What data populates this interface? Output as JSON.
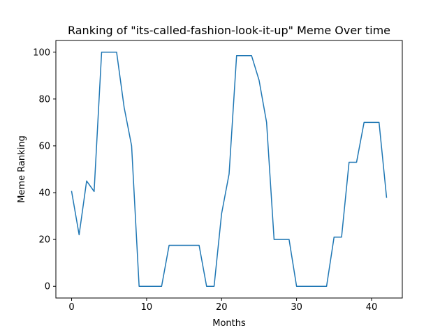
{
  "chart_data": {
    "type": "line",
    "title": "Ranking of \"its-called-fashion-look-it-up\" Meme Over time",
    "xlabel": "Months",
    "ylabel": "Meme Ranking",
    "xlim": [
      -2.1,
      44.1
    ],
    "ylim": [
      -5,
      105
    ],
    "xticks": [
      0,
      10,
      20,
      30,
      40
    ],
    "yticks": [
      0,
      20,
      40,
      60,
      80,
      100
    ],
    "grid": false,
    "line_color": "#1f77b4",
    "series": [
      {
        "x": [
          0,
          1,
          2,
          3,
          4,
          5,
          6,
          7,
          8,
          9,
          10,
          11,
          12,
          13,
          14,
          15,
          16,
          17,
          18,
          19,
          20,
          21,
          22,
          23,
          24,
          25,
          26,
          27,
          28,
          29,
          30,
          31,
          32,
          33,
          34,
          35,
          36,
          37,
          38,
          39,
          40,
          41,
          42
        ],
        "values": [
          40.5,
          22,
          45,
          40.5,
          100,
          100,
          100,
          76.5,
          60,
          0,
          0,
          0,
          0,
          17.5,
          17.5,
          17.5,
          17.5,
          17.5,
          0,
          0,
          31,
          48,
          98.5,
          98.5,
          98.5,
          88,
          70,
          20,
          20,
          20,
          0,
          0,
          0,
          0,
          0,
          21,
          21,
          53,
          53,
          70,
          70,
          70,
          38
        ]
      }
    ]
  }
}
